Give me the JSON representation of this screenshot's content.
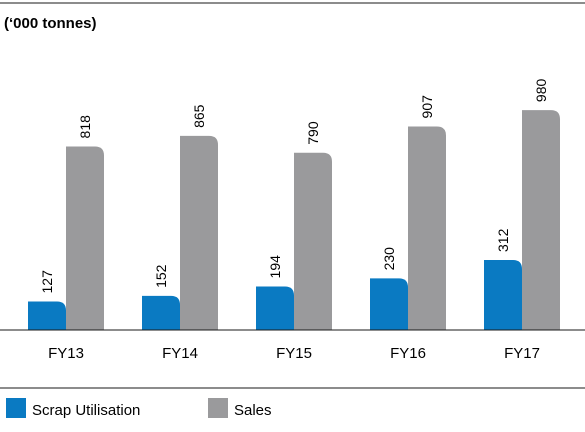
{
  "chart_data": {
    "type": "bar",
    "unit_label": "(‘000 tonnes)",
    "categories": [
      "FY13",
      "FY14",
      "FY15",
      "FY16",
      "FY17"
    ],
    "series": [
      {
        "name": "Scrap Utilisation",
        "color": "#0a7ac2",
        "values": [
          127,
          152,
          194,
          230,
          312
        ]
      },
      {
        "name": "Sales",
        "color": "#9a9a9c",
        "values": [
          818,
          865,
          790,
          907,
          980
        ]
      }
    ],
    "ylim": [
      0,
      1000
    ],
    "grid": false,
    "legend_position": "bottom-left"
  }
}
